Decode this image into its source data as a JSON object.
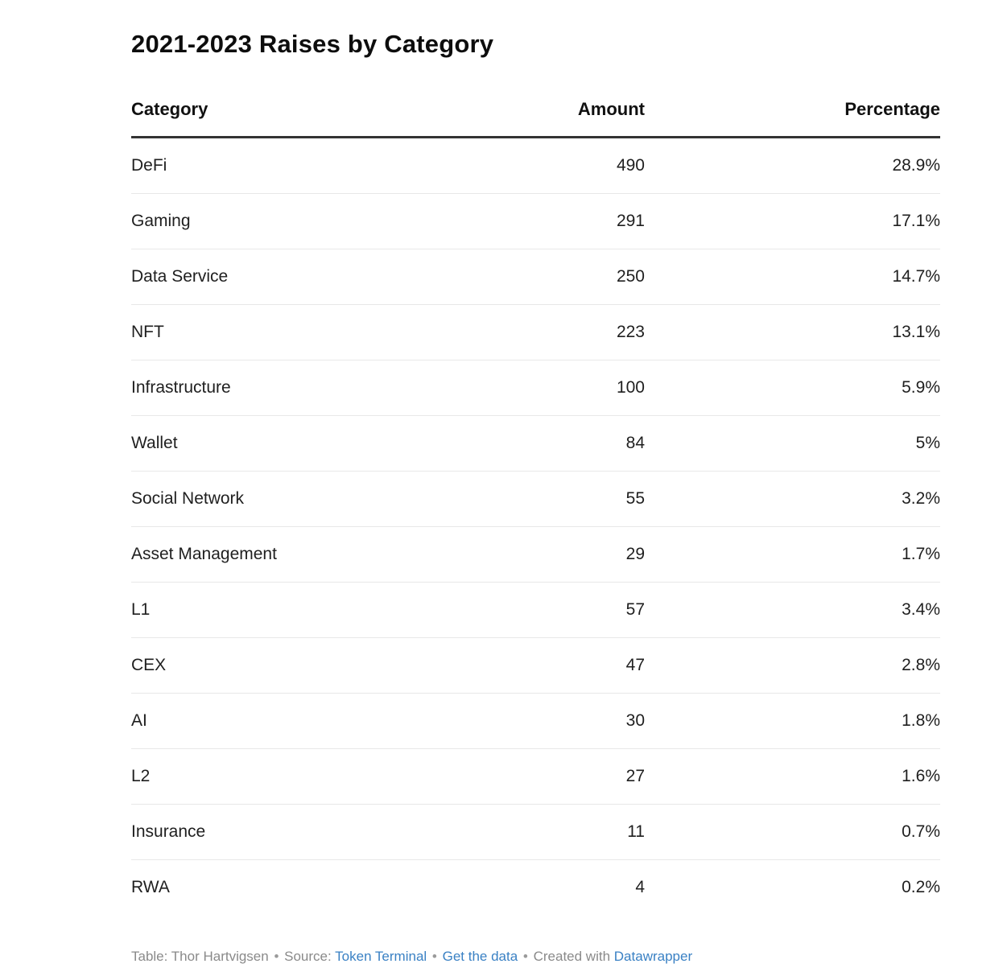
{
  "page": {
    "title": "2021-2023 Raises by Category"
  },
  "chart_data": {
    "type": "table",
    "title": "2021-2023 Raises by Category",
    "columns": [
      "Category",
      "Amount",
      "Percentage"
    ],
    "categories": [
      "DeFi",
      "Gaming",
      "Data Service",
      "NFT",
      "Infrastructure",
      "Wallet",
      "Social Network",
      "Asset Management",
      "L1",
      "CEX",
      "AI",
      "L2",
      "Insurance",
      "RWA"
    ],
    "series": [
      {
        "name": "Amount",
        "values": [
          490,
          291,
          250,
          223,
          100,
          84,
          55,
          29,
          57,
          47,
          30,
          27,
          11,
          4
        ]
      },
      {
        "name": "Percentage",
        "values": [
          28.9,
          17.1,
          14.7,
          13.1,
          5.9,
          5,
          3.2,
          1.7,
          3.4,
          2.8,
          1.8,
          1.6,
          0.7,
          0.2
        ]
      }
    ]
  },
  "table": {
    "columns": [
      "Category",
      "Amount",
      "Percentage"
    ],
    "rows": [
      {
        "category": "DeFi",
        "amount": "490",
        "percentage": "28.9%"
      },
      {
        "category": "Gaming",
        "amount": "291",
        "percentage": "17.1%"
      },
      {
        "category": "Data Service",
        "amount": "250",
        "percentage": "14.7%"
      },
      {
        "category": "NFT",
        "amount": "223",
        "percentage": "13.1%"
      },
      {
        "category": "Infrastructure",
        "amount": "100",
        "percentage": "5.9%"
      },
      {
        "category": "Wallet",
        "amount": "84",
        "percentage": "5%"
      },
      {
        "category": "Social Network",
        "amount": "55",
        "percentage": "3.2%"
      },
      {
        "category": "Asset Management",
        "amount": "29",
        "percentage": "1.7%"
      },
      {
        "category": "L1",
        "amount": "57",
        "percentage": "3.4%"
      },
      {
        "category": "CEX",
        "amount": "47",
        "percentage": "2.8%"
      },
      {
        "category": "AI",
        "amount": "30",
        "percentage": "1.8%"
      },
      {
        "category": "L2",
        "amount": "27",
        "percentage": "1.6%"
      },
      {
        "category": "Insurance",
        "amount": "11",
        "percentage": "0.7%"
      },
      {
        "category": "RWA",
        "amount": "4",
        "percentage": "0.2%"
      }
    ]
  },
  "footer": {
    "table_credit": "Table: Thor Hartvigsen",
    "separator": "•",
    "source_label": "Source:",
    "source_link": "Token Terminal",
    "get_data_link": "Get the data",
    "created_label": "Created with",
    "created_link": "Datawrapper"
  },
  "colors": {
    "link_blue": "#3a81c4",
    "header_border": "#333333",
    "row_divider": "#e8e8e8",
    "body_text": "#1f1f1f",
    "muted_text": "#8a8a8a",
    "background": "#ffffff"
  }
}
